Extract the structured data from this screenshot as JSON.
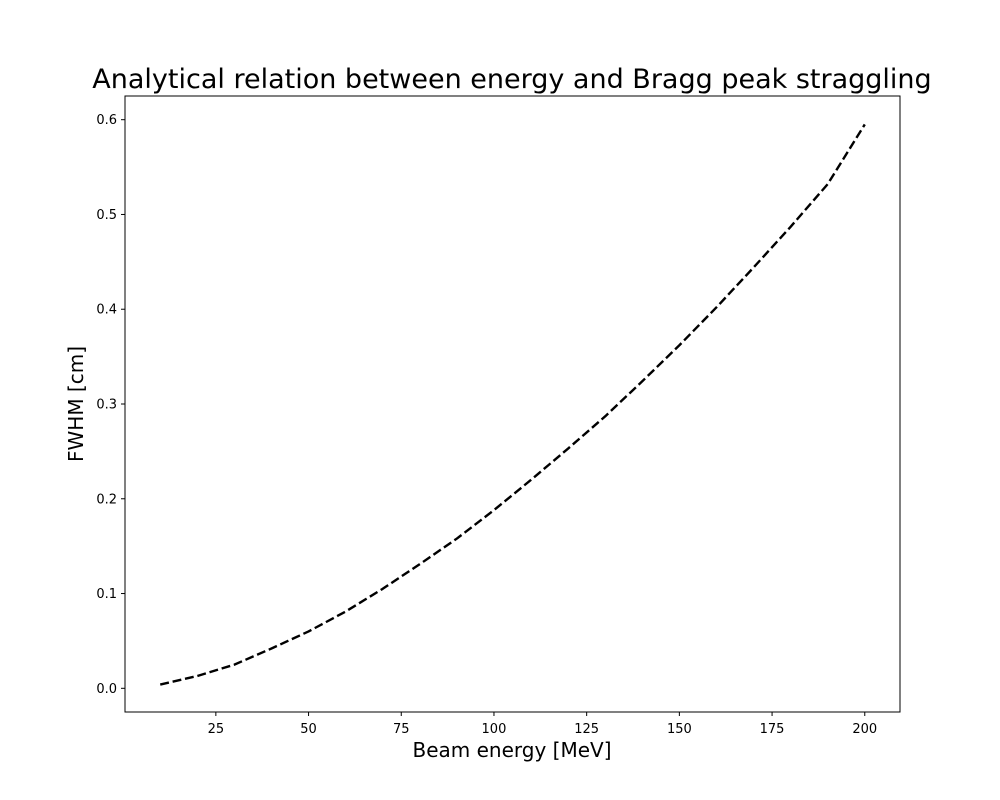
{
  "chart_data": {
    "type": "line",
    "title": "Analytical relation between energy and Bragg peak straggling",
    "xlabel": "Beam energy [MeV]",
    "ylabel": "FWHM [cm]",
    "xlim": [
      0.5,
      209.5
    ],
    "ylim": [
      -0.025,
      0.625
    ],
    "xticks": [
      25,
      50,
      75,
      100,
      125,
      150,
      175,
      200
    ],
    "yticks": [
      0.0,
      0.1,
      0.2,
      0.3,
      0.4,
      0.5,
      0.6
    ],
    "ytick_labels": [
      "0.0",
      "0.1",
      "0.2",
      "0.3",
      "0.4",
      "0.5",
      "0.6"
    ],
    "grid": false,
    "series": [
      {
        "name": "FWHM",
        "color": "#000000",
        "linestyle": "dashed",
        "x": [
          10,
          20,
          30,
          40,
          50,
          60,
          70,
          80,
          90,
          100,
          110,
          120,
          130,
          140,
          150,
          160,
          170,
          180,
          190,
          200
        ],
        "y": [
          0.004,
          0.013,
          0.025,
          0.042,
          0.06,
          0.081,
          0.105,
          0.131,
          0.158,
          0.188,
          0.22,
          0.253,
          0.287,
          0.324,
          0.362,
          0.402,
          0.444,
          0.487,
          0.532,
          0.595
        ]
      }
    ]
  }
}
